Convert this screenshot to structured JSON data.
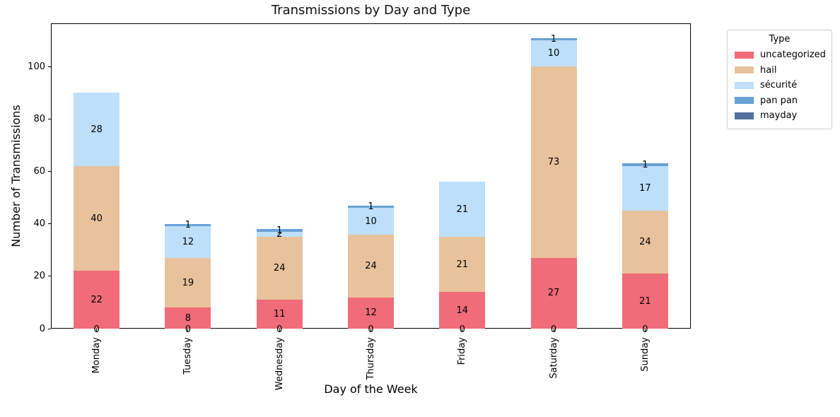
{
  "chart_data": {
    "type": "bar",
    "stacked": true,
    "title": "Transmissions by Day and Type",
    "xlabel": "Day of the Week",
    "ylabel": "Number of Transmissions",
    "categories": [
      "Monday",
      "Tuesday",
      "Wednesday",
      "Thursday",
      "Friday",
      "Saturday",
      "Sunday"
    ],
    "series": [
      {
        "name": "uncategorized",
        "color": "#ef6c78",
        "values": [
          22,
          8,
          11,
          12,
          14,
          27,
          21
        ]
      },
      {
        "name": "hail",
        "color": "#e8c29c",
        "values": [
          40,
          19,
          24,
          24,
          21,
          73,
          24
        ]
      },
      {
        "name": "sécurité",
        "color": "#bddffa",
        "values": [
          28,
          12,
          2,
          10,
          21,
          10,
          17
        ]
      },
      {
        "name": "pan pan",
        "color": "#68a1d6",
        "values": [
          0,
          1,
          1,
          1,
          0,
          1,
          1
        ]
      },
      {
        "name": "mayday",
        "color": "#52719e",
        "values": [
          0,
          0,
          0,
          0,
          0,
          0,
          0
        ]
      }
    ],
    "yticks": [
      0,
      20,
      40,
      60,
      80,
      100
    ],
    "ylim": [
      0,
      116.55
    ],
    "grid": false,
    "legend": {
      "title": "Type",
      "position": "outside-upper-right"
    },
    "bar_label_color": "#000000",
    "bar_labels": "each nonzero segment labeled at center; zero mayday labeled 0 at baseline"
  }
}
